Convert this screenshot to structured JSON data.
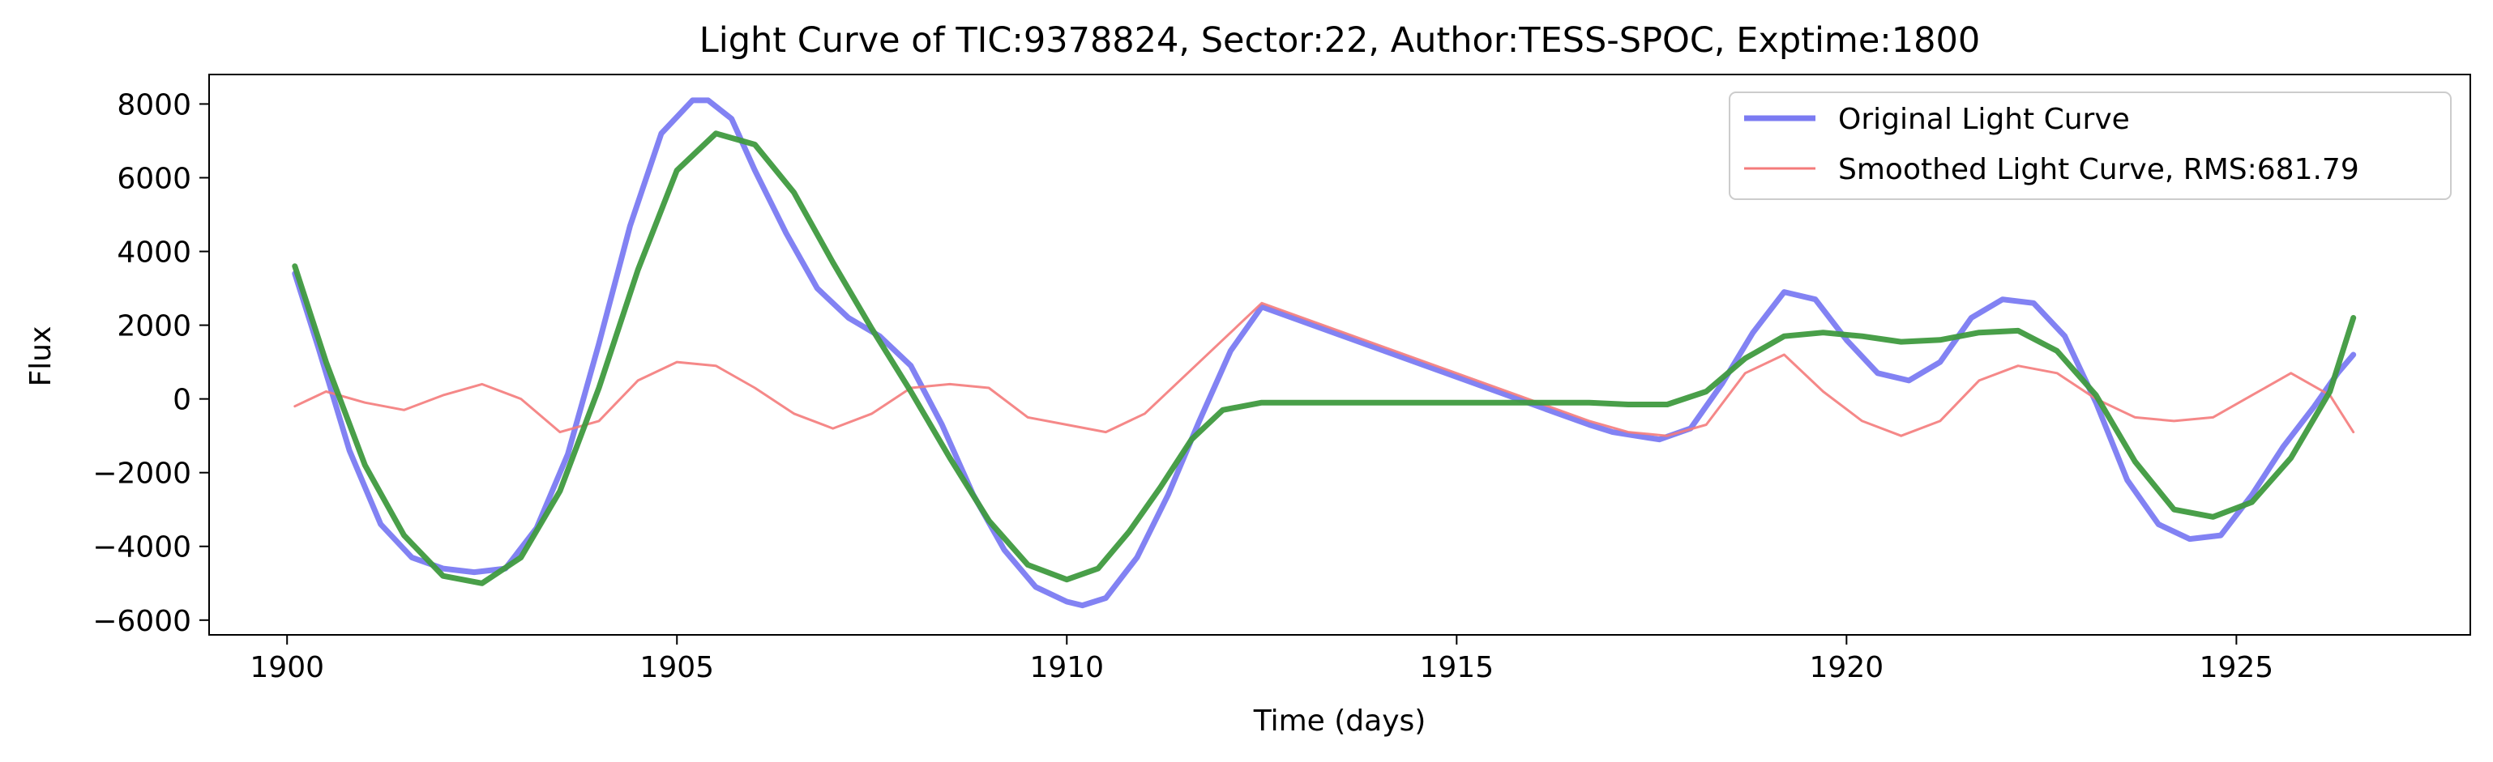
{
  "chart_data": {
    "type": "line",
    "title": "Light Curve of TIC:9378824, Sector:22, Author:TESS-SPOC, Exptime:1800",
    "xlabel": "Time (days)",
    "ylabel": "Flux",
    "xlim": [
      1899,
      1928
    ],
    "ylim": [
      -6400,
      8800
    ],
    "x_ticks": [
      1900,
      1905,
      1910,
      1915,
      1920,
      1925
    ],
    "y_ticks": [
      -6000,
      -4000,
      -2000,
      0,
      2000,
      4000,
      6000,
      8000
    ],
    "x_tick_labels": [
      "1900",
      "1905",
      "1910",
      "1915",
      "1920",
      "1925"
    ],
    "y_tick_labels": [
      "−6000",
      "−4000",
      "−2000",
      "0",
      "2000",
      "4000",
      "6000",
      "8000"
    ],
    "grid": false,
    "legend_position": "top-right",
    "legend": [
      "Original Light Curve",
      "Smoothed Light Curve, RMS:681.79"
    ],
    "series": [
      {
        "name": "Original Light Curve",
        "color": "#7b7bf2",
        "style": "thick",
        "x": [
          1900.1,
          1900.4,
          1900.8,
          1901.2,
          1901.6,
          1902.0,
          1902.4,
          1902.8,
          1903.2,
          1903.6,
          1904.0,
          1904.4,
          1904.8,
          1905.2,
          1905.4,
          1905.7,
          1906.0,
          1906.4,
          1906.8,
          1907.2,
          1907.6,
          1908.0,
          1908.4,
          1908.8,
          1909.2,
          1909.6,
          1910.0,
          1910.2,
          1910.5,
          1910.9,
          1911.3,
          1911.7,
          1912.1,
          1912.5,
          1916.7,
          1917.0,
          1917.3,
          1917.6,
          1918.0,
          1918.4,
          1918.8,
          1919.2,
          1919.6,
          1920.0,
          1920.4,
          1920.8,
          1921.2,
          1921.6,
          1922.0,
          1922.4,
          1922.8,
          1923.2,
          1923.6,
          1924.0,
          1924.4,
          1924.8,
          1925.2,
          1925.6,
          1926.0,
          1926.3,
          1926.5
        ],
        "y": [
          3400,
          1400,
          -1400,
          -3400,
          -4300,
          -4600,
          -4700,
          -4600,
          -3500,
          -1500,
          1500,
          4700,
          7200,
          8100,
          8100,
          7600,
          6200,
          4500,
          3000,
          2200,
          1700,
          900,
          -700,
          -2600,
          -4100,
          -5100,
          -5500,
          -5600,
          -5400,
          -4300,
          -2600,
          -600,
          1300,
          2500,
          -700,
          -900,
          -1000,
          -1100,
          -800,
          400,
          1800,
          2900,
          2700,
          1600,
          700,
          500,
          1000,
          2200,
          2700,
          2600,
          1700,
          -100,
          -2200,
          -3400,
          -3800,
          -3700,
          -2600,
          -1300,
          -200,
          700,
          1200
        ]
      },
      {
        "name": "Smoothed Light Curve, RMS:681.79",
        "color": "#f47b7b",
        "style": "thin",
        "x": [
          1900.1,
          1900.5,
          1901.0,
          1901.5,
          1902.0,
          1902.5,
          1903.0,
          1903.5,
          1904.0,
          1904.5,
          1905.0,
          1905.5,
          1906.0,
          1906.5,
          1907.0,
          1907.5,
          1908.0,
          1908.5,
          1909.0,
          1909.5,
          1910.0,
          1910.5,
          1911.0,
          1911.5,
          1912.0,
          1912.5,
          1916.7,
          1917.2,
          1917.7,
          1918.2,
          1918.7,
          1919.2,
          1919.7,
          1920.2,
          1920.7,
          1921.2,
          1921.7,
          1922.2,
          1922.7,
          1923.2,
          1923.7,
          1924.2,
          1924.7,
          1925.2,
          1925.7,
          1926.2,
          1926.5
        ],
        "y": [
          -200,
          200,
          -100,
          -300,
          100,
          400,
          0,
          -900,
          -600,
          500,
          1000,
          900,
          300,
          -400,
          -800,
          -400,
          300,
          400,
          300,
          -500,
          -700,
          -900,
          -400,
          600,
          1600,
          2600,
          -600,
          -900,
          -1000,
          -700,
          700,
          1200,
          200,
          -600,
          -1000,
          -600,
          500,
          900,
          700,
          0,
          -500,
          -600,
          -500,
          100,
          700,
          100,
          -900
        ]
      },
      {
        "name": "",
        "color": "#3f9a3f",
        "style": "thick",
        "x": [
          1900.1,
          1900.5,
          1901.0,
          1901.5,
          1902.0,
          1902.5,
          1903.0,
          1903.5,
          1904.0,
          1904.5,
          1905.0,
          1905.5,
          1906.0,
          1906.5,
          1907.0,
          1907.5,
          1908.0,
          1908.5,
          1909.0,
          1909.5,
          1910.0,
          1910.4,
          1910.8,
          1911.2,
          1911.6,
          1912.0,
          1912.5,
          1913.0,
          1914.0,
          1915.0,
          1916.0,
          1916.7,
          1917.2,
          1917.7,
          1918.2,
          1918.7,
          1919.2,
          1919.7,
          1920.2,
          1920.7,
          1921.2,
          1921.7,
          1922.2,
          1922.7,
          1923.2,
          1923.7,
          1924.2,
          1924.7,
          1925.2,
          1925.7,
          1926.2,
          1926.5
        ],
        "y": [
          3600,
          1000,
          -1800,
          -3700,
          -4800,
          -5000,
          -4300,
          -2500,
          300,
          3500,
          6200,
          7200,
          6900,
          5600,
          3700,
          1900,
          200,
          -1600,
          -3300,
          -4500,
          -4900,
          -4600,
          -3600,
          -2400,
          -1100,
          -300,
          -100,
          -100,
          -100,
          -100,
          -100,
          -100,
          -150,
          -150,
          200,
          1100,
          1700,
          1800,
          1700,
          1550,
          1600,
          1800,
          1850,
          1300,
          100,
          -1700,
          -3000,
          -3200,
          -2800,
          -1600,
          200,
          2200
        ]
      }
    ]
  }
}
